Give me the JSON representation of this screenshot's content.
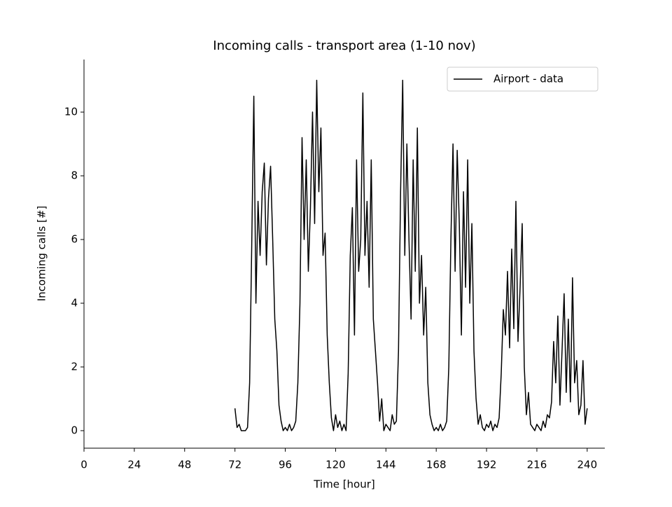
{
  "chart_data": {
    "type": "line",
    "title": "Incoming calls - transport area (1-10 nov)",
    "xlabel": "Time [hour]",
    "ylabel": "Incoming calls [#]",
    "legend": "upper right",
    "x": [
      72,
      73,
      74,
      75,
      76,
      77,
      78,
      79,
      80,
      81,
      82,
      83,
      84,
      85,
      86,
      87,
      88,
      89,
      90,
      91,
      92,
      93,
      94,
      95,
      96,
      97,
      98,
      99,
      100,
      101,
      102,
      103,
      104,
      105,
      106,
      107,
      108,
      109,
      110,
      111,
      112,
      113,
      114,
      115,
      116,
      117,
      118,
      119,
      120,
      121,
      122,
      123,
      124,
      125,
      126,
      127,
      128,
      129,
      130,
      131,
      132,
      133,
      134,
      135,
      136,
      137,
      138,
      139,
      140,
      141,
      142,
      143,
      144,
      145,
      146,
      147,
      148,
      149,
      150,
      151,
      152,
      153,
      154,
      155,
      156,
      157,
      158,
      159,
      160,
      161,
      162,
      163,
      164,
      165,
      166,
      167,
      168,
      169,
      170,
      171,
      172,
      173,
      174,
      175,
      176,
      177,
      178,
      179,
      180,
      181,
      182,
      183,
      184,
      185,
      186,
      187,
      188,
      189,
      190,
      191,
      192,
      193,
      194,
      195,
      196,
      197,
      198,
      199,
      200,
      201,
      202,
      203,
      204,
      205,
      206,
      207,
      208,
      209,
      210,
      211,
      212,
      213,
      214,
      215,
      216,
      217,
      218,
      219,
      220,
      221,
      222,
      223,
      224,
      225,
      226,
      227,
      228,
      229,
      230,
      231,
      232,
      233,
      234,
      235,
      236,
      237,
      238,
      239,
      240
    ],
    "series": [
      {
        "name": "Airport - data",
        "color": "#000000",
        "values": [
          0.7,
          0.1,
          0.2,
          0,
          0,
          0,
          0.1,
          1.5,
          5.8,
          10.5,
          4.0,
          7.2,
          5.5,
          7.5,
          8.4,
          5.2,
          7.3,
          8.3,
          6.0,
          3.5,
          2.5,
          0.8,
          0.3,
          0,
          0.1,
          0,
          0.2,
          0,
          0.1,
          0.3,
          1.5,
          4.0,
          9.2,
          6.0,
          8.5,
          5.0,
          7.0,
          10.0,
          6.5,
          11.0,
          7.5,
          9.5,
          5.5,
          6.2,
          3.0,
          1.5,
          0.4,
          0,
          0.5,
          0.1,
          0.3,
          0,
          0.2,
          0,
          1.8,
          5.5,
          7.0,
          3.0,
          8.5,
          5.0,
          6.0,
          10.6,
          5.5,
          7.2,
          4.5,
          8.5,
          3.5,
          2.5,
          1.5,
          0.3,
          1.0,
          0,
          0.2,
          0.1,
          0,
          0.5,
          0.2,
          0.3,
          2.5,
          7.5,
          11.0,
          5.5,
          9.0,
          6.0,
          3.5,
          8.5,
          5.0,
          9.5,
          4.0,
          5.5,
          3.0,
          4.5,
          1.5,
          0.5,
          0.2,
          0,
          0.1,
          0,
          0.2,
          0,
          0.1,
          0.3,
          2.0,
          6.0,
          9.0,
          5.0,
          8.8,
          6.5,
          3.0,
          7.5,
          4.5,
          8.5,
          4.0,
          6.5,
          2.5,
          1.0,
          0.2,
          0.5,
          0.1,
          0,
          0.2,
          0.1,
          0.3,
          0,
          0.2,
          0.1,
          0.4,
          1.8,
          3.8,
          3.0,
          5.0,
          2.6,
          5.7,
          3.2,
          7.2,
          2.8,
          4.5,
          6.5,
          2.0,
          0.5,
          1.2,
          0.2,
          0.1,
          0,
          0.2,
          0.1,
          0,
          0.3,
          0.1,
          0.5,
          0.4,
          0.9,
          2.8,
          1.5,
          3.6,
          0.8,
          2.5,
          4.3,
          1.2,
          3.5,
          0.9,
          4.8,
          1.5,
          2.2,
          0.5,
          0.8,
          2.2,
          0.2,
          0.7
        ]
      }
    ],
    "xlim": [
      0,
      248.4
    ],
    "ylim": [
      -0.55,
      11.65
    ],
    "xticks": [
      0,
      24,
      48,
      72,
      96,
      120,
      144,
      168,
      192,
      216,
      240
    ],
    "yticks": [
      0,
      2,
      4,
      6,
      8,
      10
    ]
  }
}
